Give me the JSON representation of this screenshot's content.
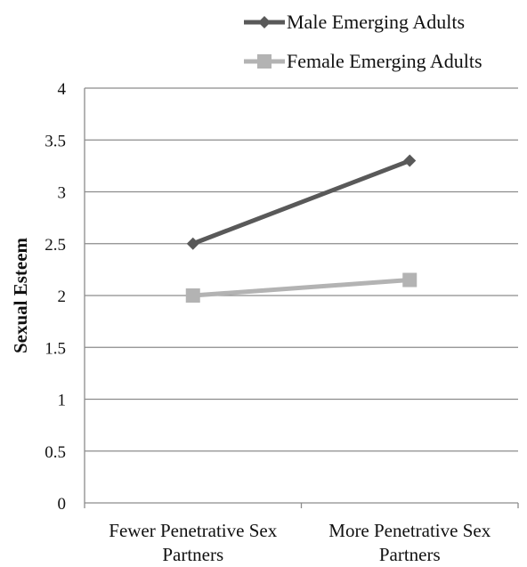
{
  "chart_data": {
    "type": "line",
    "title": "",
    "xlabel": "",
    "ylabel": "Sexual Esteem",
    "categories": [
      [
        "Fewer Penetrative Sex",
        "Partners"
      ],
      [
        "More Penetrative Sex",
        "Partners"
      ]
    ],
    "ylim": [
      0,
      4
    ],
    "yticks": [
      "0",
      "0.5",
      "1",
      "1.5",
      "2",
      "2.5",
      "3",
      "3.5",
      "4"
    ],
    "grid": true,
    "legend_position": "top-right",
    "series": [
      {
        "name": "Male Emerging Adults",
        "values": [
          2.5,
          3.3
        ],
        "color": "#595959",
        "marker": "diamond"
      },
      {
        "name": "Female Emerging Adults",
        "values": [
          2.0,
          2.15
        ],
        "color": "#b3b3b3",
        "marker": "square"
      }
    ]
  }
}
